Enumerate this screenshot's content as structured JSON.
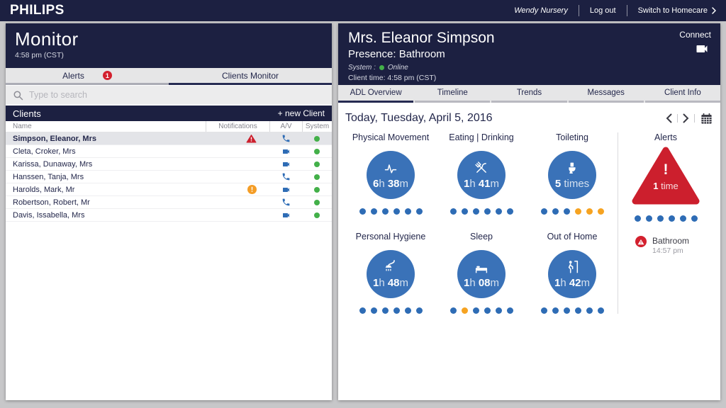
{
  "topbar": {
    "brand": "PHILIPS",
    "user": "Wendy Nursery",
    "logout": "Log out",
    "switch_label": "Switch to Homecare"
  },
  "monitor": {
    "title": "Monitor",
    "time": "4:58 pm (CST)",
    "tabs": {
      "alerts": "Alerts",
      "alerts_badge": "1",
      "clients_monitor": "Clients Monitor"
    },
    "search_placeholder": "Type to search",
    "clients_title": "Clients",
    "new_client_label": "+ new Client",
    "columns": {
      "name": "Name",
      "notifications": "Notifications",
      "av": "A/V",
      "system": "System"
    },
    "rows": [
      {
        "name": "Simpson, Eleanor, Mrs",
        "notification": "alert",
        "av": "phone",
        "system": "online",
        "selected": true
      },
      {
        "name": "Cleta, Croker, Mrs",
        "notification": "",
        "av": "camera",
        "system": "online",
        "selected": false
      },
      {
        "name": "Karissa, Dunaway, Mrs",
        "notification": "",
        "av": "camera",
        "system": "online",
        "selected": false
      },
      {
        "name": "Hanssen, Tanja, Mrs",
        "notification": "",
        "av": "phone",
        "system": "online",
        "selected": false
      },
      {
        "name": "Harolds, Mark, Mr",
        "notification": "warning",
        "av": "camera",
        "system": "online",
        "selected": false
      },
      {
        "name": "Robertson, Robert, Mr",
        "notification": "",
        "av": "phone",
        "system": "online",
        "selected": false
      },
      {
        "name": "Davis, Issabella, Mrs",
        "notification": "",
        "av": "camera",
        "system": "online",
        "selected": false
      }
    ]
  },
  "client": {
    "name": "Mrs. Eleanor Simpson",
    "presence": "Presence: Bathroom",
    "system_label": "System :",
    "system_status": "Online",
    "client_time": "Client time: 4:58 pm (CST)",
    "connect_label": "Connect",
    "tabs": [
      {
        "label": "ADL Overview",
        "active": true
      },
      {
        "label": "Timeline",
        "active": false
      },
      {
        "label": "Trends",
        "active": false
      },
      {
        "label": "Messages",
        "active": false
      },
      {
        "label": "Client Info",
        "active": false
      }
    ],
    "date": "Today, Tuesday, April 5, 2016",
    "adl": [
      {
        "label": "Physical Movement",
        "icon": "pulse-icon",
        "v1": "6",
        "u1": "h",
        "v2": "38",
        "u2": "m",
        "dots": [
          "blue",
          "blue",
          "blue",
          "blue",
          "blue",
          "blue"
        ]
      },
      {
        "label": "Eating | Drinking",
        "icon": "cutlery-icon",
        "v1": "1",
        "u1": "h",
        "v2": "41",
        "u2": "m",
        "dots": [
          "blue",
          "blue",
          "blue",
          "blue",
          "blue",
          "blue"
        ]
      },
      {
        "label": "Toileting",
        "icon": "toilet-icon",
        "v1": "5",
        "u1": "",
        "v2": "",
        "u2": "times",
        "dots": [
          "blue",
          "blue",
          "blue",
          "orange",
          "orange",
          "orange"
        ]
      },
      {
        "label": "Personal Hygiene",
        "icon": "shower-icon",
        "v1": "1",
        "u1": "h",
        "v2": "48",
        "u2": "m",
        "dots": [
          "blue",
          "blue",
          "blue",
          "blue",
          "blue",
          "blue"
        ]
      },
      {
        "label": "Sleep",
        "icon": "bed-icon",
        "v1": "1",
        "u1": "h",
        "v2": "08",
        "u2": "m",
        "dots": [
          "blue",
          "orange",
          "blue",
          "blue",
          "blue",
          "blue"
        ]
      },
      {
        "label": "Out of Home",
        "icon": "exit-door-icon",
        "v1": "1",
        "u1": "h",
        "v2": "42",
        "u2": "m",
        "dots": [
          "blue",
          "blue",
          "blue",
          "blue",
          "blue",
          "blue"
        ]
      }
    ],
    "alerts": {
      "label": "Alerts",
      "exclamation": "!",
      "count": "1",
      "count_unit": "time",
      "dots": [
        "blue",
        "blue",
        "blue",
        "blue",
        "blue",
        "blue"
      ],
      "event": {
        "title": "Bathroom",
        "time": "14:57 pm"
      }
    },
    "colors": {
      "navy": "#1c2041",
      "circle_blue": "#3a72b8",
      "dot_blue": "#2e6cb5",
      "dot_orange": "#f6a321",
      "alert_red": "#cc1f2d",
      "online_green": "#43b049"
    }
  }
}
